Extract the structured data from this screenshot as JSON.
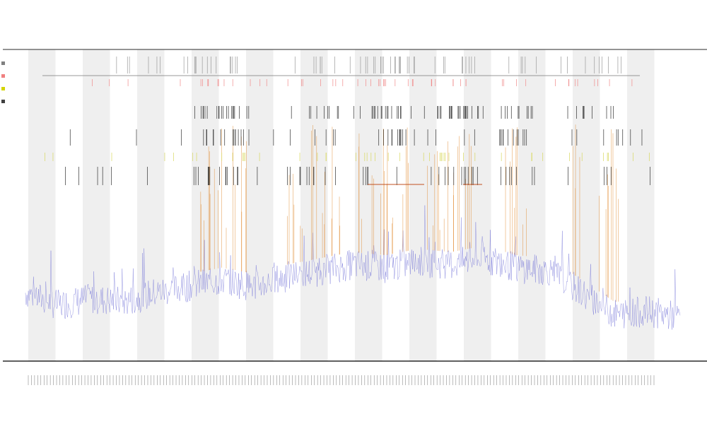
{
  "chart_data": {
    "type": "line",
    "title": "",
    "subtitle_lines": [
      "",
      ""
    ],
    "xlabel": "",
    "ylabel": "",
    "grid": false,
    "shaded_bands": 12,
    "legend_placement": "top-left",
    "legend": [
      {
        "name": "",
        "color": "#808080"
      },
      {
        "name": "",
        "color": "#f08080"
      },
      {
        "name": "",
        "color": "#d4d400"
      },
      {
        "name": "",
        "color": "#404040"
      }
    ],
    "tick_count": 200,
    "ylim": [
      0,
      100
    ],
    "series": [
      {
        "name": "",
        "color": "#6b6bd6",
        "role": "baseline"
      },
      {
        "name": "",
        "color": "#e08a30",
        "role": "peaks"
      }
    ],
    "sampled_baseline": [
      {
        "x": 0,
        "y": 22
      },
      {
        "x": 5,
        "y": 18
      },
      {
        "x": 10,
        "y": 20
      },
      {
        "x": 15,
        "y": 19
      },
      {
        "x": 20,
        "y": 22
      },
      {
        "x": 25,
        "y": 24
      },
      {
        "x": 30,
        "y": 26
      },
      {
        "x": 35,
        "y": 24
      },
      {
        "x": 40,
        "y": 27
      },
      {
        "x": 45,
        "y": 29
      },
      {
        "x": 50,
        "y": 31
      },
      {
        "x": 55,
        "y": 30
      },
      {
        "x": 60,
        "y": 32
      },
      {
        "x": 65,
        "y": 31
      },
      {
        "x": 70,
        "y": 33
      },
      {
        "x": 75,
        "y": 30
      },
      {
        "x": 80,
        "y": 29
      },
      {
        "x": 85,
        "y": 22
      },
      {
        "x": 90,
        "y": 15
      },
      {
        "x": 95,
        "y": 16
      },
      {
        "x": 100,
        "y": 14
      }
    ],
    "peak_positions": [
      27,
      29,
      31,
      33,
      41,
      43,
      45,
      47,
      52,
      54,
      56,
      58,
      62,
      64,
      66,
      68,
      74,
      76,
      84,
      88,
      90
    ]
  },
  "colors": {
    "band": "#efefef",
    "axis": "#000000",
    "event_gray": "#9a9a9a",
    "event_red": "#f08a8a",
    "event_black": "#333333",
    "event_yellow": "#d8d860"
  }
}
